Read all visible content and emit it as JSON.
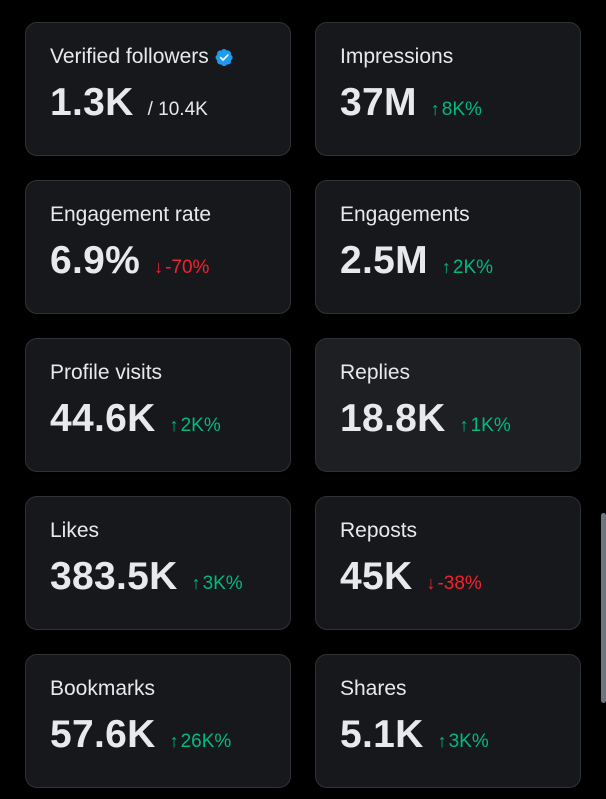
{
  "cards": [
    {
      "label": "Verified followers",
      "value": "1.3K",
      "sub": "/ 10.4K",
      "verified": true
    },
    {
      "label": "Impressions",
      "value": "37M",
      "change": {
        "direction": "up",
        "text": "8K%"
      }
    },
    {
      "label": "Engagement rate",
      "value": "6.9%",
      "change": {
        "direction": "down",
        "text": "-70%"
      }
    },
    {
      "label": "Engagements",
      "value": "2.5M",
      "change": {
        "direction": "up",
        "text": "2K%"
      }
    },
    {
      "label": "Profile visits",
      "value": "44.6K",
      "change": {
        "direction": "up",
        "text": "2K%"
      }
    },
    {
      "label": "Replies",
      "value": "18.8K",
      "change": {
        "direction": "up",
        "text": "1K%"
      },
      "highlighted": true
    },
    {
      "label": "Likes",
      "value": "383.5K",
      "change": {
        "direction": "up",
        "text": "3K%"
      }
    },
    {
      "label": "Reposts",
      "value": "45K",
      "change": {
        "direction": "down",
        "text": "-38%"
      }
    },
    {
      "label": "Bookmarks",
      "value": "57.6K",
      "change": {
        "direction": "up",
        "text": "26K%"
      }
    },
    {
      "label": "Shares",
      "value": "5.1K",
      "change": {
        "direction": "up",
        "text": "3K%"
      }
    }
  ],
  "icons": {
    "up": "↑",
    "down": "↓",
    "verified": "verified-badge-icon"
  },
  "colors": {
    "background": "#000000",
    "card": "#16181c",
    "card_highlight": "#1d1f23",
    "border": "#2f3336",
    "text": "#e7e9ea",
    "up": "#00ba7c",
    "down": "#f4212e",
    "verified": "#1d9bf0"
  }
}
